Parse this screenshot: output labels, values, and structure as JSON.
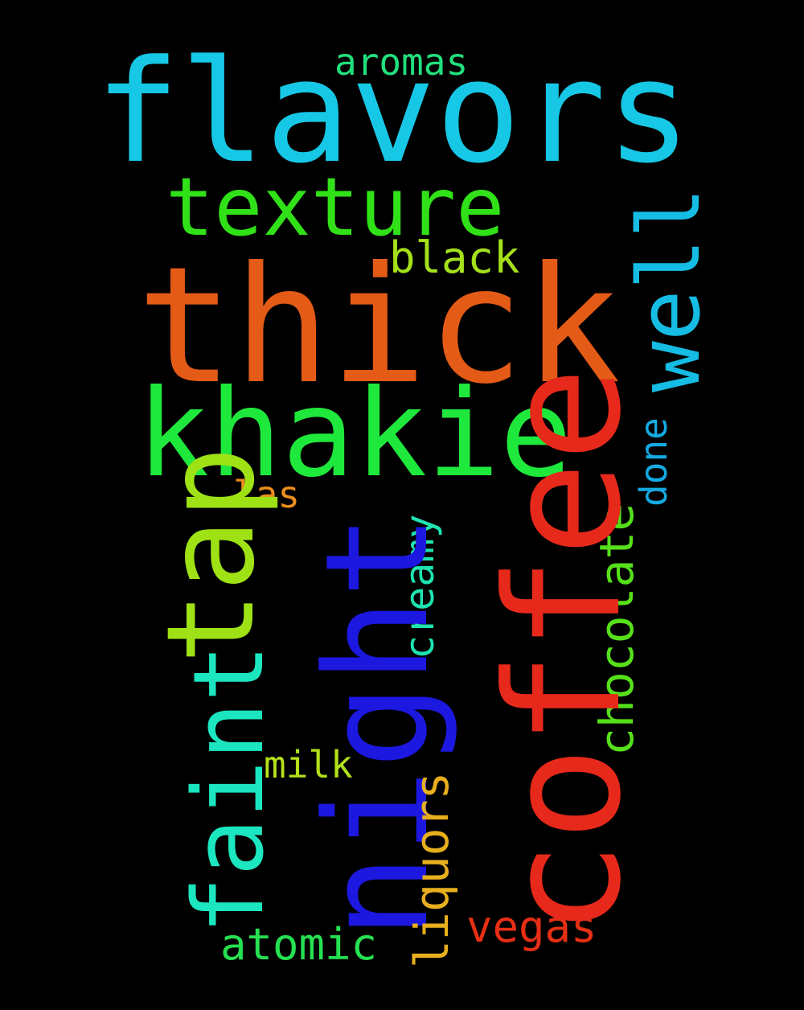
{
  "words": {
    "flavors": "flavors",
    "texture": "texture",
    "aromas": "aromas",
    "black": "black",
    "thick": "thick",
    "well": "well",
    "khakie": "khakie",
    "done": "done",
    "tap": "tap",
    "las": "las",
    "night": "night",
    "coffee": "coffee",
    "chocolate": "chocolate",
    "creamy": "creamy",
    "faint": "faint",
    "milk": "milk",
    "liquors": "liquors",
    "atomic": "atomic",
    "vegas": "vegas"
  },
  "colors": {
    "background": "#000000",
    "flavors": "#17c8e6",
    "thick": "#e35b16",
    "coffee": "#e6291b",
    "night": "#1c18e0",
    "khakie": "#1fe83c"
  }
}
